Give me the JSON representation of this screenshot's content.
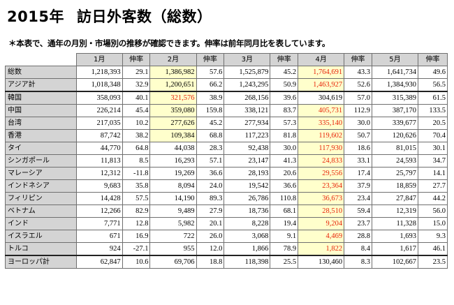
{
  "page": {
    "title_year": "2015年",
    "title_main": "訪日外客数（総数）",
    "subtitle": "＊本表で、通年の月別・市場別の推移が確認できます。伸率は前年同月比を表しています。"
  },
  "table": {
    "headers": [
      "",
      "1月",
      "伸率",
      "2月",
      "伸率",
      "3月",
      "伸率",
      "4月",
      "伸率",
      "5月",
      "伸率"
    ],
    "rows": [
      {
        "label": "総数",
        "values": [
          "1,218,393",
          "29.1",
          "1,386,982",
          "57.6",
          "1,525,879",
          "45.2",
          "1,764,691",
          "43.3",
          "1,641,734",
          "49.6"
        ]
      },
      {
        "label": "アジア計",
        "values": [
          "1,018,348",
          "32.9",
          "1,200,651",
          "66.2",
          "1,243,295",
          "50.9",
          "1,463,927",
          "52.6",
          "1,384,930",
          "56.5"
        ]
      },
      {
        "label": "韓国",
        "values": [
          "358,093",
          "40.1",
          "321,576",
          "38.9",
          "268,156",
          "39.6",
          "304,619",
          "57.0",
          "315,389",
          "61.5"
        ]
      },
      {
        "label": "中国",
        "values": [
          "226,214",
          "45.4",
          "359,080",
          "159.8",
          "338,121",
          "83.7",
          "405,731",
          "112.9",
          "387,170",
          "133.5"
        ]
      },
      {
        "label": "台湾",
        "values": [
          "217,035",
          "10.2",
          "277,626",
          "45.2",
          "277,934",
          "57.3",
          "335,140",
          "30.0",
          "339,677",
          "20.5"
        ]
      },
      {
        "label": "香港",
        "values": [
          "87,742",
          "38.2",
          "109,384",
          "68.8",
          "117,223",
          "81.8",
          "119,602",
          "50.7",
          "120,626",
          "70.4"
        ]
      },
      {
        "label": "タイ",
        "values": [
          "44,770",
          "64.8",
          "44,038",
          "28.3",
          "92,438",
          "30.0",
          "117,930",
          "18.6",
          "81,015",
          "30.1"
        ]
      },
      {
        "label": "シンガポール",
        "values": [
          "11,813",
          "8.5",
          "16,293",
          "57.1",
          "23,147",
          "41.3",
          "24,833",
          "33.1",
          "24,593",
          "34.7"
        ]
      },
      {
        "label": "マレーシア",
        "values": [
          "12,312",
          "-11.8",
          "19,269",
          "36.6",
          "28,193",
          "20.6",
          "29,556",
          "17.4",
          "25,797",
          "14.1"
        ]
      },
      {
        "label": "インドネシア",
        "values": [
          "9,683",
          "35.8",
          "8,094",
          "24.0",
          "19,542",
          "36.6",
          "23,364",
          "37.9",
          "18,859",
          "27.7"
        ]
      },
      {
        "label": "フィリピン",
        "values": [
          "14,428",
          "57.5",
          "14,190",
          "89.3",
          "26,786",
          "110.8",
          "36,673",
          "23.4",
          "27,847",
          "44.2"
        ]
      },
      {
        "label": "ベトナム",
        "values": [
          "12,266",
          "82.9",
          "9,489",
          "27.9",
          "18,736",
          "68.1",
          "28,510",
          "59.4",
          "12,319",
          "56.0"
        ]
      },
      {
        "label": "インド",
        "values": [
          "7,771",
          "12.8",
          "5,982",
          "20.1",
          "8,228",
          "19.4",
          "9,204",
          "23.7",
          "11,328",
          "15.0"
        ]
      },
      {
        "label": "イスラエル",
        "values": [
          "671",
          "16.9",
          "722",
          "26.0",
          "3,068",
          "9.1",
          "4,469",
          "28.8",
          "1,693",
          "9.3"
        ]
      },
      {
        "label": "トルコ",
        "values": [
          "924",
          "-27.1",
          "955",
          "12.0",
          "1,866",
          "78.9",
          "1,822",
          "8.4",
          "1,617",
          "46.1"
        ]
      },
      {
        "label": "ヨーロッパ計",
        "values": [
          "62,847",
          "10.6",
          "69,706",
          "18.8",
          "118,398",
          "25.5",
          "130,460",
          "8.3",
          "102,667",
          "23.5"
        ]
      }
    ],
    "highlighted_cells": [
      {
        "row": 0,
        "col": 3
      },
      {
        "row": 0,
        "col": 7
      },
      {
        "row": 1,
        "col": 3
      },
      {
        "row": 1,
        "col": 7
      },
      {
        "row": 2,
        "col": 3
      },
      {
        "row": 3,
        "col": 3
      },
      {
        "row": 4,
        "col": 3
      },
      {
        "row": 5,
        "col": 3
      },
      {
        "row": 3,
        "col": 7
      },
      {
        "row": 4,
        "col": 7
      },
      {
        "row": 5,
        "col": 7
      },
      {
        "row": 6,
        "col": 7
      },
      {
        "row": 7,
        "col": 7
      },
      {
        "row": 8,
        "col": 7
      },
      {
        "row": 9,
        "col": 7
      },
      {
        "row": 10,
        "col": 7
      },
      {
        "row": 11,
        "col": 7
      },
      {
        "row": 12,
        "col": 7
      },
      {
        "row": 13,
        "col": 7
      },
      {
        "row": 14,
        "col": 7
      }
    ],
    "red_cells": [
      {
        "row": 0,
        "col": 7
      },
      {
        "row": 1,
        "col": 7
      },
      {
        "row": 2,
        "col": 3
      },
      {
        "row": 3,
        "col": 7
      },
      {
        "row": 4,
        "col": 7
      },
      {
        "row": 5,
        "col": 7
      },
      {
        "row": 6,
        "col": 7
      },
      {
        "row": 7,
        "col": 7
      },
      {
        "row": 8,
        "col": 7
      },
      {
        "row": 9,
        "col": 7
      },
      {
        "row": 10,
        "col": 7
      },
      {
        "row": 11,
        "col": 7
      },
      {
        "row": 12,
        "col": 7
      },
      {
        "row": 13,
        "col": 7
      },
      {
        "row": 14,
        "col": 7
      }
    ],
    "colors": {
      "header_bg": "#d4d4d4",
      "highlight_bg": "#ffffcc",
      "emphasis_text": "#e8230a"
    }
  }
}
